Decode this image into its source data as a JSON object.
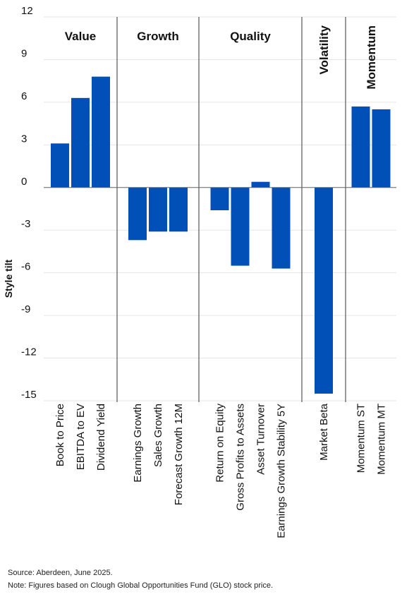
{
  "chart_data": {
    "type": "bar",
    "ylabel": "Style tilt",
    "xlabel": "",
    "ylim": [
      -15,
      12
    ],
    "yticks": [
      12,
      9,
      6,
      3,
      0,
      -3,
      -6,
      -9,
      -12,
      -15
    ],
    "grid": true,
    "bar_color": "#0050B8",
    "groups": [
      {
        "name": "Value",
        "label_orientation": "horizontal",
        "categories": [
          "Book to Price",
          "EBITDA to EV",
          "Dividend Yield"
        ],
        "values": [
          3.1,
          6.3,
          7.8
        ]
      },
      {
        "name": "Growth",
        "label_orientation": "horizontal",
        "categories": [
          "Earnings Growth",
          "Sales Growth",
          "Forecast Growth 12M"
        ],
        "values": [
          -3.7,
          -3.1,
          -3.1
        ]
      },
      {
        "name": "Quality",
        "label_orientation": "horizontal",
        "categories": [
          "Return on Equity",
          "Gross Profits to Assets",
          "Asset Turnover",
          "Earnings Growth Stability 5Y"
        ],
        "values": [
          -1.6,
          -5.5,
          0.4,
          -5.7
        ]
      },
      {
        "name": "Volatility",
        "label_orientation": "vertical",
        "categories": [
          "Market Beta"
        ],
        "values": [
          -14.5
        ]
      },
      {
        "name": "Momentum",
        "label_orientation": "vertical",
        "categories": [
          "Momentum ST",
          "Momentum MT"
        ],
        "values": [
          5.7,
          5.5
        ]
      }
    ]
  },
  "footer": {
    "source": "Source: Aberdeen, June 2025.",
    "note": "Note: Figures based on Clough Global Opportunities Fund (GLO) stock price."
  }
}
